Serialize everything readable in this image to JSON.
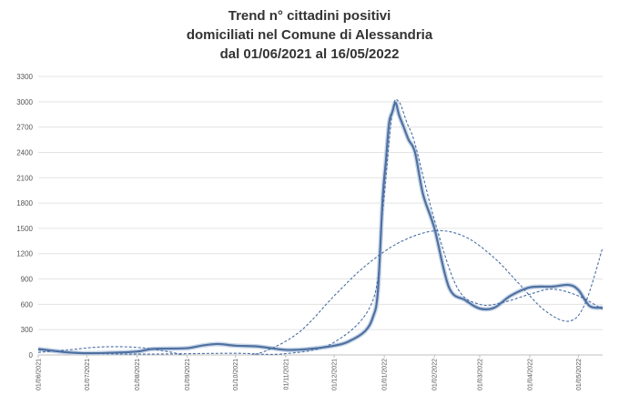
{
  "chart_data": {
    "type": "line",
    "title": [
      "Trend n° cittadini positivi",
      "domiciliati nel Comune di Alessandria",
      "dal 01/06/2021 al 16/05/2022"
    ],
    "xlabel": "",
    "ylabel": "",
    "ylim": [
      0,
      3300
    ],
    "yticks": [
      0,
      300,
      600,
      900,
      1200,
      1500,
      1800,
      2100,
      2400,
      2700,
      3000,
      3300
    ],
    "xlim": [
      "2021-06-01",
      "2022-05-16"
    ],
    "xticks": [
      "01/06/2021",
      "01/07/2021",
      "01/08/2021",
      "01/09/2021",
      "01/10/2021",
      "01/11/2021",
      "01/12/2021",
      "01/01/2022",
      "01/02/2022",
      "01/03/2022",
      "01/04/2022",
      "01/05/2022"
    ],
    "grid": true,
    "legend": "none",
    "colors": {
      "series": "#4f71a0",
      "trend": "#4a6fa5",
      "grid": "#e3e3e3",
      "axis": "#bfbfbf",
      "label": "#555555"
    },
    "series": [
      {
        "style": "solid",
        "x": [
          "2021-06-01",
          "2021-06-10",
          "2021-06-20",
          "2021-07-01",
          "2021-07-15",
          "2021-08-01",
          "2021-08-10",
          "2021-08-20",
          "2021-09-01",
          "2021-09-10",
          "2021-09-20",
          "2021-10-01",
          "2021-10-15",
          "2021-11-01",
          "2021-11-15",
          "2021-12-01",
          "2021-12-10",
          "2021-12-20",
          "2021-12-25",
          "2021-12-28",
          "2021-12-31",
          "2022-01-02",
          "2022-01-04",
          "2022-01-06",
          "2022-01-08",
          "2022-01-10",
          "2022-01-13",
          "2022-01-16",
          "2022-01-20",
          "2022-01-25",
          "2022-02-01",
          "2022-02-10",
          "2022-02-20",
          "2022-03-01",
          "2022-03-10",
          "2022-03-20",
          "2022-04-01",
          "2022-04-15",
          "2022-04-25",
          "2022-05-01",
          "2022-05-08",
          "2022-05-16"
        ],
        "y": [
          70,
          50,
          30,
          20,
          25,
          40,
          70,
          75,
          80,
          110,
          130,
          110,
          100,
          60,
          70,
          110,
          160,
          280,
          450,
          750,
          1850,
          2300,
          2750,
          2880,
          2990,
          2850,
          2700,
          2550,
          2400,
          1900,
          1500,
          800,
          650,
          550,
          560,
          700,
          800,
          810,
          830,
          770,
          580,
          560
        ]
      },
      {
        "style": "dashed",
        "x": [
          "2021-06-01",
          "2021-07-01",
          "2021-08-01",
          "2021-09-01",
          "2021-10-01",
          "2021-11-01",
          "2021-12-01",
          "2021-12-25",
          "2021-12-31",
          "2022-01-06",
          "2022-01-10",
          "2022-01-15",
          "2022-01-20",
          "2022-02-01",
          "2022-02-15",
          "2022-03-01",
          "2022-03-15",
          "2022-04-01",
          "2022-04-15",
          "2022-05-01",
          "2022-05-16"
        ],
        "y": [
          60,
          20,
          10,
          15,
          20,
          15,
          150,
          650,
          1700,
          2880,
          3000,
          2750,
          2500,
          1600,
          800,
          600,
          620,
          720,
          780,
          700,
          540
        ]
      },
      {
        "style": "dashed",
        "x": [
          "2021-06-01",
          "2021-06-20",
          "2021-07-10",
          "2021-08-01",
          "2021-08-20",
          "2021-09-10",
          "2021-10-01",
          "2021-10-20",
          "2021-11-10",
          "2021-12-01",
          "2021-12-20",
          "2022-01-10",
          "2022-02-01",
          "2022-02-20",
          "2022-03-10",
          "2022-03-25",
          "2022-04-10",
          "2022-04-25",
          "2022-05-05",
          "2022-05-16"
        ],
        "y": [
          30,
          60,
          95,
          90,
          40,
          -40,
          -30,
          50,
          280,
          700,
          1050,
          1330,
          1470,
          1400,
          1150,
          850,
          530,
          400,
          600,
          1270
        ]
      }
    ]
  }
}
